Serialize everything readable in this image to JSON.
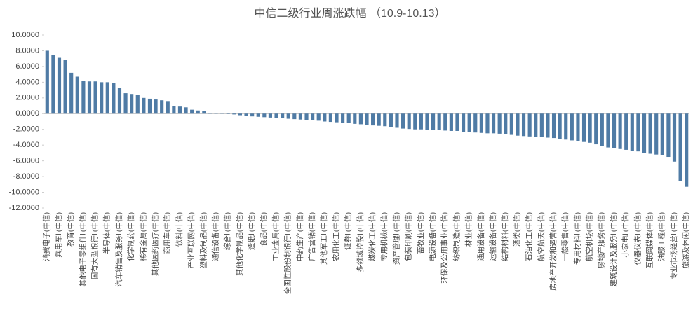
{
  "chart_data": {
    "type": "bar",
    "title": "中信二级行业周涨跌幅 （10.9-10.13）",
    "color": "#4f7ba5",
    "categories": [
      "消费电子(中信)",
      null,
      "乘用车Ⅱ(中信)",
      null,
      "教育(中信)",
      null,
      "其他电子零组件Ⅱ(中信)",
      null,
      "国有大型银行Ⅱ(中信)",
      null,
      "半导体(中信)",
      null,
      "汽车销售及服务Ⅱ(中信)",
      null,
      "化学制药(中信)",
      null,
      "稀有金属(中信)",
      null,
      "其他医药医疗(中信)",
      null,
      "商用车(中信)",
      null,
      "饮料(中信)",
      null,
      "产业互联网(中信)",
      null,
      "塑料及制品(中信)",
      null,
      "通信设备(中信)",
      null,
      "综合Ⅱ(中信)",
      null,
      "其他化学制品(中信)",
      null,
      "造纸Ⅱ(中信)",
      null,
      "食品(中信)",
      null,
      "工业金属(中信)",
      null,
      "全国性股份制银行Ⅱ(中信)",
      null,
      "中药生产(中信)",
      null,
      "广告营销(中信)",
      null,
      "其他军工Ⅱ(中信)",
      null,
      "农用化工(中信)",
      null,
      "证券Ⅱ(中信)",
      null,
      "多领域控股Ⅱ(中信)",
      null,
      "煤炭化工(中信)",
      null,
      "专用机械(中信)",
      null,
      "资产管理Ⅱ(中信)",
      null,
      "包装印刷(中信)",
      null,
      "畜牧业(中信)",
      null,
      "电源设备(中信)",
      null,
      "环保及公用事业(中信)",
      null,
      "纺织制造(中信)",
      null,
      "林业(中信)",
      null,
      "通用设备(中信)",
      null,
      "运输设备(中信)",
      null,
      "结构材料(中信)",
      null,
      "酒类(中信)",
      null,
      "石油化工(中信)",
      null,
      "航空航天(中信)",
      null,
      "房地产开发和运营(中信)",
      null,
      "一般零售(中信)",
      null,
      "专用材料Ⅱ(中信)",
      null,
      "航空机场(中信)",
      null,
      "房地产服务(中信)",
      null,
      "建筑设计及服务Ⅱ(中信)",
      null,
      "小家电Ⅱ(中信)",
      null,
      "仪器仪表Ⅱ(中信)",
      null,
      "互联网媒体(中信)",
      null,
      "油服工程(中信)",
      null,
      "专业市场经营Ⅱ(中信)",
      null,
      "旅游及休闲(中信)"
    ],
    "values": [
      8.0,
      7.5,
      7.1,
      6.8,
      5.2,
      4.7,
      4.2,
      4.1,
      4.1,
      4.0,
      4.0,
      3.9,
      3.3,
      2.6,
      2.5,
      2.4,
      2.0,
      1.9,
      1.8,
      1.7,
      1.6,
      1.0,
      0.9,
      0.8,
      0.5,
      0.4,
      0.3,
      0.05,
      0.1,
      0.05,
      0.0,
      -0.1,
      -0.2,
      -0.3,
      -0.35,
      -0.4,
      -0.45,
      -0.5,
      -0.55,
      -0.6,
      -0.65,
      -0.7,
      -0.75,
      -0.8,
      -0.85,
      -0.9,
      -1.0,
      -1.05,
      -1.1,
      -1.15,
      -1.2,
      -1.3,
      -1.35,
      -1.4,
      -1.5,
      -1.55,
      -1.6,
      -1.7,
      -1.8,
      -1.9,
      -1.95,
      -2.0,
      -2.0,
      -2.05,
      -2.1,
      -2.1,
      -2.15,
      -2.2,
      -2.2,
      -2.3,
      -2.35,
      -2.4,
      -2.45,
      -2.5,
      -2.5,
      -2.55,
      -2.6,
      -2.7,
      -2.8,
      -2.85,
      -2.9,
      -2.95,
      -3.0,
      -3.05,
      -3.1,
      -3.2,
      -3.3,
      -3.4,
      -3.5,
      -3.6,
      -3.7,
      -3.9,
      -4.1,
      -4.3,
      -4.4,
      -4.5,
      -4.6,
      -4.7,
      -4.8,
      -5.0,
      -5.1,
      -5.2,
      -5.3,
      -5.5,
      -6.1,
      -8.6,
      -9.3
    ],
    "ylim": [
      -12,
      10
    ],
    "yticks": [
      {
        "value": 10,
        "label": "10.0000"
      },
      {
        "value": 8,
        "label": "8.0000"
      },
      {
        "value": 6,
        "label": "6.0000"
      },
      {
        "value": 4,
        "label": "4.0000"
      },
      {
        "value": 2,
        "label": "2.0000"
      },
      {
        "value": 0,
        "label": "0.0000"
      },
      {
        "value": -2,
        "label": "-2.0000"
      },
      {
        "value": -4,
        "label": "-4.0000"
      },
      {
        "value": -6,
        "label": "-6.0000"
      },
      {
        "value": -8,
        "label": "-8.0000"
      },
      {
        "value": -10,
        "label": "-10.0000"
      },
      {
        "value": -12,
        "label": "-12.0000"
      }
    ],
    "grid": false
  }
}
